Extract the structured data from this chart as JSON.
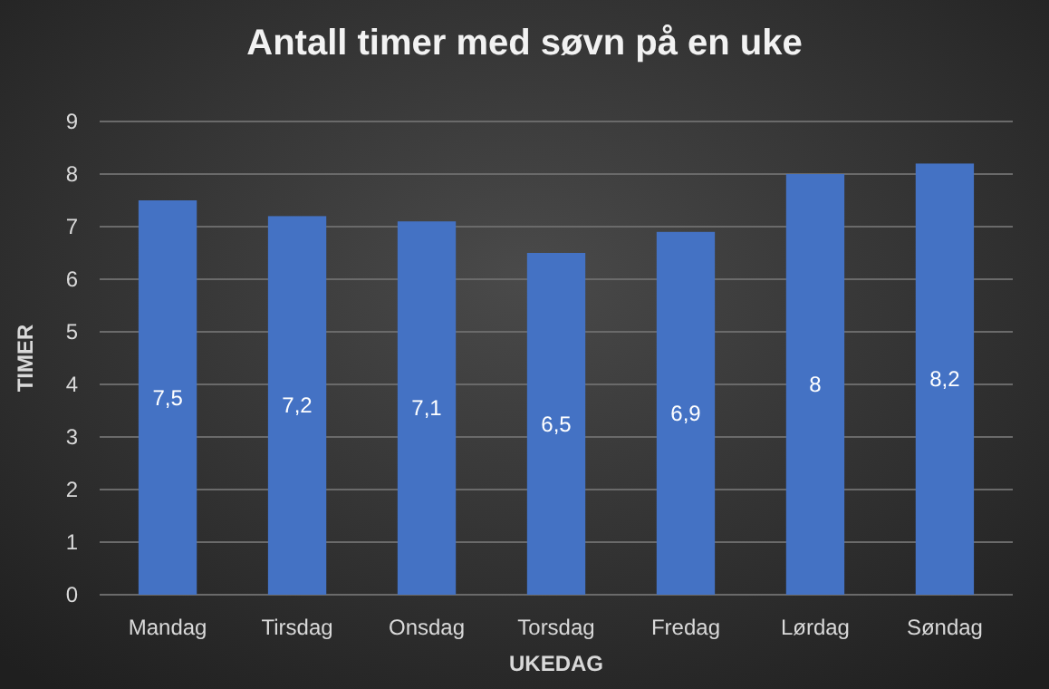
{
  "chart_data": {
    "type": "bar",
    "title": "Antall timer med søvn på en uke",
    "xlabel": "UKEDAG",
    "ylabel": "TIMER",
    "categories": [
      "Mandag",
      "Tirsdag",
      "Onsdag",
      "Torsdag",
      "Fredag",
      "Lørdag",
      "Søndag"
    ],
    "values": [
      7.5,
      7.2,
      7.1,
      6.5,
      6.9,
      8,
      8.2
    ],
    "value_labels": [
      "7,5",
      "7,2",
      "7,1",
      "6,5",
      "6,9",
      "8",
      "8,2"
    ],
    "color": "#4472c4",
    "ylim": [
      0,
      9
    ],
    "yticks": [
      0,
      1,
      2,
      3,
      4,
      5,
      6,
      7,
      8,
      9
    ],
    "grid": "y"
  }
}
